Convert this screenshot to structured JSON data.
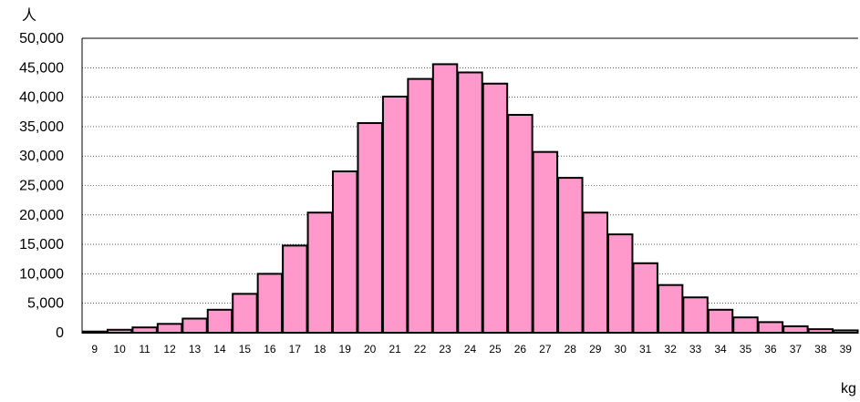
{
  "chart_data": {
    "type": "bar",
    "ylabel": "人",
    "xlabel": "kg",
    "ylim": [
      0,
      50000
    ],
    "ytick_step": 5000,
    "yticks": [
      "0",
      "5,000",
      "10,000",
      "15,000",
      "20,000",
      "25,000",
      "30,000",
      "35,000",
      "40,000",
      "45,000",
      "50,000"
    ],
    "categories": [
      "9",
      "10",
      "11",
      "12",
      "13",
      "14",
      "15",
      "16",
      "17",
      "18",
      "19",
      "20",
      "21",
      "22",
      "23",
      "24",
      "25",
      "26",
      "27",
      "28",
      "29",
      "30",
      "31",
      "32",
      "33",
      "34",
      "35",
      "36",
      "37",
      "38",
      "39"
    ],
    "values": [
      200,
      500,
      900,
      1500,
      2400,
      3900,
      6600,
      10000,
      14800,
      20400,
      27400,
      35600,
      40100,
      43100,
      45600,
      44200,
      42300,
      37000,
      30700,
      26300,
      20400,
      16700,
      11800,
      8100,
      6000,
      3900,
      2600,
      1800,
      1100,
      600,
      400
    ],
    "bar_color": "#ff99cc",
    "bar_edge_color": "#000000",
    "grid": true,
    "grid_style": "dotted"
  }
}
